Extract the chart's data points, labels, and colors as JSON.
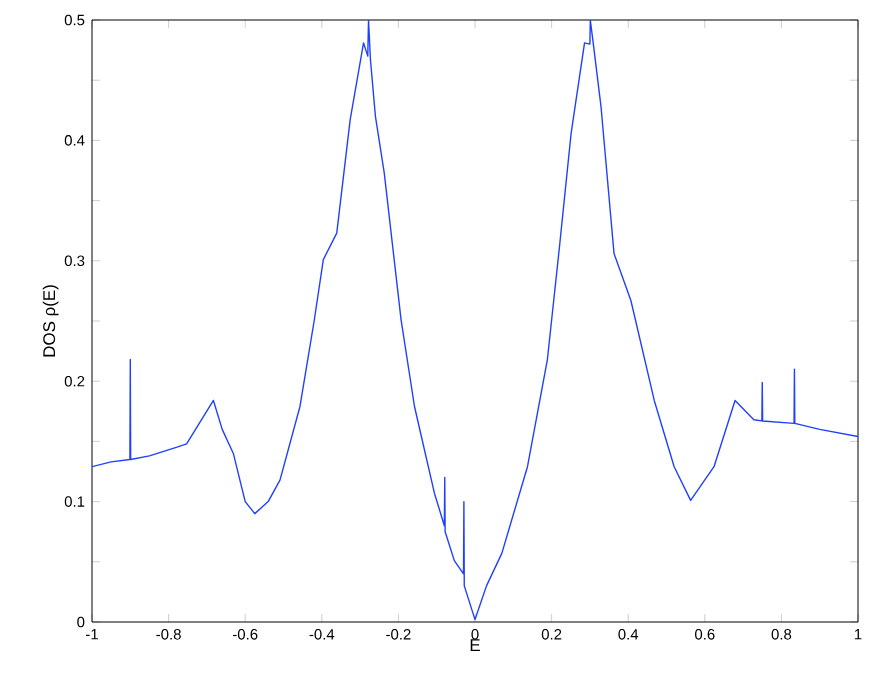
{
  "chart_data": {
    "type": "line",
    "xlabel": "E",
    "ylabel": "DOS ρ(E)",
    "xlim": [
      -1,
      1
    ],
    "ylim": [
      0,
      0.5
    ],
    "xticks": [
      -1,
      -0.8,
      -0.6,
      -0.4,
      -0.2,
      0,
      0.2,
      0.4,
      0.6,
      0.8,
      1
    ],
    "yticks": [
      0,
      {
        "value": 0.05,
        "label": null
      },
      0.1,
      {
        "value": 0.15,
        "label": null
      },
      0.2,
      {
        "value": 0.25,
        "label": null
      },
      0.3,
      {
        "value": 0.35,
        "label": null
      },
      0.4,
      {
        "value": 0.45,
        "label": null
      },
      0.5
    ],
    "x": [
      -1,
      -0.95,
      -0.901,
      -0.9,
      -0.899,
      -0.85,
      -0.78,
      -0.753,
      -0.72,
      -0.683,
      -0.66,
      -0.631,
      -0.6,
      -0.575,
      -0.54,
      -0.509,
      -0.457,
      -0.42,
      -0.396,
      -0.361,
      -0.326,
      -0.291,
      -0.28,
      -0.278,
      -0.273,
      -0.26,
      -0.237,
      -0.193,
      -0.158,
      -0.106,
      -0.08,
      -0.079,
      -0.078,
      -0.054,
      -0.03,
      -0.029,
      -0.028,
      0,
      0.03,
      0.07,
      0.137,
      0.189,
      0.22,
      0.251,
      0.286,
      0.3,
      0.301,
      0.309,
      0.329,
      0.363,
      0.407,
      0.468,
      0.52,
      0.563,
      0.624,
      0.679,
      0.728,
      0.749,
      0.75,
      0.751,
      0.833,
      0.834,
      0.835,
      0.9,
      1
    ],
    "series": [
      {
        "color": "#2040ff",
        "values": [
          0.129,
          0.133,
          0.135,
          0.218,
          0.135,
          0.138,
          0.145,
          0.148,
          0.165,
          0.184,
          0.16,
          0.14,
          0.1,
          0.09,
          0.1,
          0.118,
          0.179,
          0.25,
          0.301,
          0.323,
          0.417,
          0.481,
          0.47,
          0.5,
          0.467,
          0.42,
          0.373,
          0.251,
          0.179,
          0.107,
          0.08,
          0.12,
          0.075,
          0.051,
          0.04,
          0.1,
          0.03,
          0.002,
          0.03,
          0.057,
          0.129,
          0.218,
          0.31,
          0.406,
          0.481,
          0.48,
          0.5,
          0.48,
          0.428,
          0.306,
          0.267,
          0.184,
          0.129,
          0.101,
          0.129,
          0.184,
          0.168,
          0.167,
          0.199,
          0.167,
          0.165,
          0.21,
          0.165,
          0.16,
          0.154
        ]
      }
    ]
  }
}
